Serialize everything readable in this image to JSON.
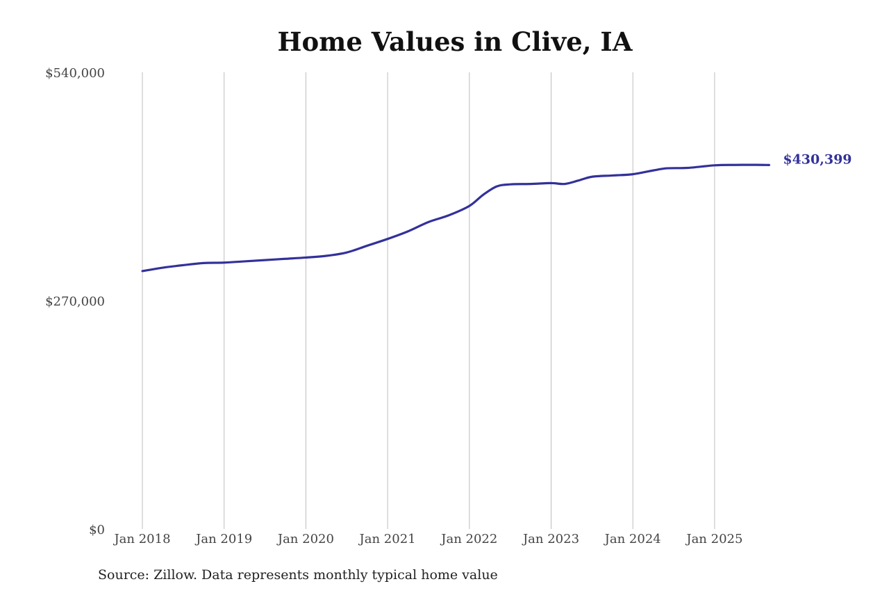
{
  "chart_data": {
    "type": "line",
    "title": "Home Values in Clive, IA",
    "xlabel": "",
    "ylabel": "",
    "ylim": [
      0,
      540000
    ],
    "xlim": [
      "2018-01",
      "2025-09"
    ],
    "y_ticks": [
      {
        "value": 0,
        "label": "$0"
      },
      {
        "value": 270000,
        "label": "$270,000"
      },
      {
        "value": 540000,
        "label": "$540,000"
      }
    ],
    "x_ticks": [
      {
        "date": "2018-01",
        "label": "Jan 2018"
      },
      {
        "date": "2019-01",
        "label": "Jan 2019"
      },
      {
        "date": "2020-01",
        "label": "Jan 2020"
      },
      {
        "date": "2021-01",
        "label": "Jan 2021"
      },
      {
        "date": "2022-01",
        "label": "Jan 2022"
      },
      {
        "date": "2023-01",
        "label": "Jan 2023"
      },
      {
        "date": "2024-01",
        "label": "Jan 2024"
      },
      {
        "date": "2025-01",
        "label": "Jan 2025"
      }
    ],
    "grid": "vertical",
    "line_color": "#33319a",
    "end_label": "$430,399",
    "series": [
      {
        "name": "",
        "points": [
          {
            "x": "2018-01",
            "y": 305000
          },
          {
            "x": "2018-04",
            "y": 309000
          },
          {
            "x": "2018-07",
            "y": 312000
          },
          {
            "x": "2018-10",
            "y": 314500
          },
          {
            "x": "2019-01",
            "y": 315000
          },
          {
            "x": "2019-04",
            "y": 316500
          },
          {
            "x": "2019-07",
            "y": 318000
          },
          {
            "x": "2019-10",
            "y": 319500
          },
          {
            "x": "2020-01",
            "y": 321000
          },
          {
            "x": "2020-04",
            "y": 323000
          },
          {
            "x": "2020-07",
            "y": 327000
          },
          {
            "x": "2020-10",
            "y": 335000
          },
          {
            "x": "2021-01",
            "y": 343000
          },
          {
            "x": "2021-04",
            "y": 352000
          },
          {
            "x": "2021-07",
            "y": 363000
          },
          {
            "x": "2021-10",
            "y": 371000
          },
          {
            "x": "2022-01",
            "y": 382000
          },
          {
            "x": "2022-03",
            "y": 395000
          },
          {
            "x": "2022-05",
            "y": 405000
          },
          {
            "x": "2022-07",
            "y": 407500
          },
          {
            "x": "2022-10",
            "y": 408000
          },
          {
            "x": "2023-01",
            "y": 409000
          },
          {
            "x": "2023-03",
            "y": 408000
          },
          {
            "x": "2023-05",
            "y": 412000
          },
          {
            "x": "2023-07",
            "y": 416500
          },
          {
            "x": "2023-10",
            "y": 418000
          },
          {
            "x": "2024-01",
            "y": 419500
          },
          {
            "x": "2024-04",
            "y": 424000
          },
          {
            "x": "2024-06",
            "y": 426500
          },
          {
            "x": "2024-09",
            "y": 427000
          },
          {
            "x": "2025-01",
            "y": 430000
          },
          {
            "x": "2025-04",
            "y": 430500
          },
          {
            "x": "2025-07",
            "y": 430600
          },
          {
            "x": "2025-09",
            "y": 430399
          }
        ]
      }
    ]
  },
  "source_note": "Source: Zillow. Data represents monthly typical home value"
}
